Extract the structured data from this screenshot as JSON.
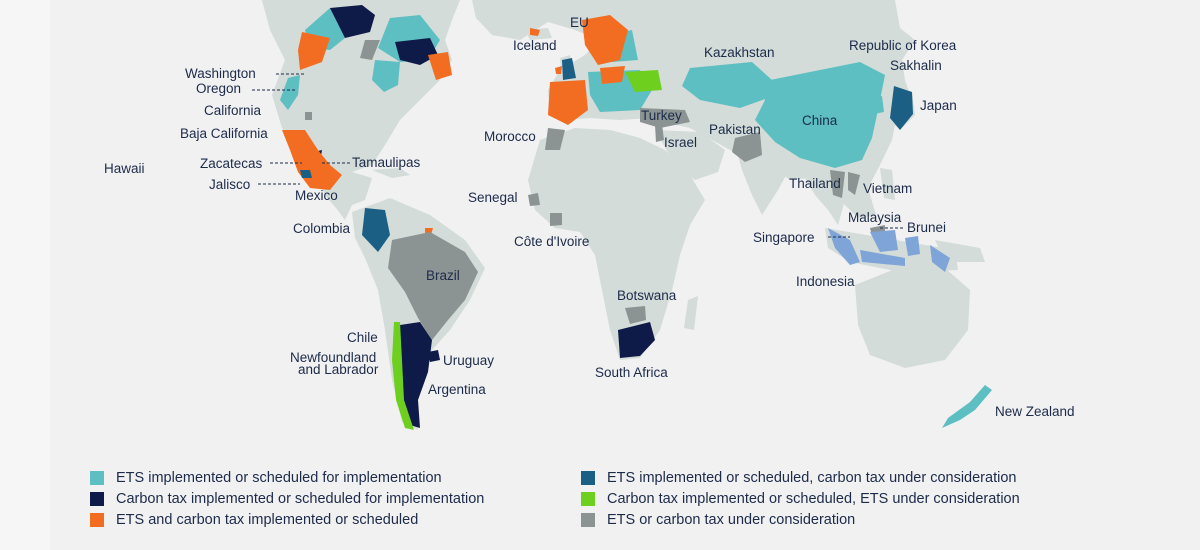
{
  "colors": {
    "ocean": "#f1f1f1",
    "land": "#d3dcd8",
    "ets": "#5dbfc2",
    "carbon_tax": "#0e1a48",
    "ets_and_tax": "#f26d21",
    "ets_tax_consideration": "#1b5f85",
    "tax_ets_consideration": "#6fcf1e",
    "consideration": "#8b9393",
    "indonesia": "#7fa4d8",
    "text": "#1c2b4a"
  },
  "labels": {
    "eu": "EU",
    "iceland": "Iceland",
    "kazakhstan": "Kazakhstan",
    "korea": "Republic of Korea",
    "sakhalin": "Sakhalin",
    "japan": "Japan",
    "washington": "Washington",
    "oregon": "Oregon",
    "california": "California",
    "baja": "Baja California",
    "hawaii": "Hawaii",
    "zacatecas": "Zacatecas",
    "tamaulipas": "Tamaulipas",
    "jalisco": "Jalisco",
    "mexico": "Mexico",
    "colombia": "Colombia",
    "brazil": "Brazil",
    "chile": "Chile",
    "newfoundland_1": "Newfoundland",
    "newfoundland_2": "and Labrador",
    "uruguay": "Uruguay",
    "argentina": "Argentina",
    "morocco": "Morocco",
    "turkey": "Turkey",
    "israel": "Israel",
    "pakistan": "Pakistan",
    "china": "China",
    "thailand": "Thailand",
    "vietnam": "Vietnam",
    "malaysia": "Malaysia",
    "brunei": "Brunei",
    "singapore": "Singapore",
    "indonesia": "Indonesia",
    "senegal": "Senegal",
    "cote_divoire": "Côte d'Ivoire",
    "botswana": "Botswana",
    "south_africa": "South Africa",
    "new_zealand": "New Zealand"
  },
  "legend": [
    {
      "label": "ETS implemented or scheduled for implementation",
      "color": "#5dbfc2"
    },
    {
      "label": "Carbon tax implemented or scheduled for implementation",
      "color": "#0e1a48"
    },
    {
      "label": "ETS and carbon tax implemented or scheduled",
      "color": "#f26d21"
    },
    {
      "label": "ETS implemented or scheduled, carbon tax under consideration",
      "color": "#1b5f85"
    },
    {
      "label": "Carbon tax implemented or scheduled, ETS under consideration",
      "color": "#6fcf1e"
    },
    {
      "label": "ETS or carbon tax under consideration",
      "color": "#8b9393"
    }
  ]
}
